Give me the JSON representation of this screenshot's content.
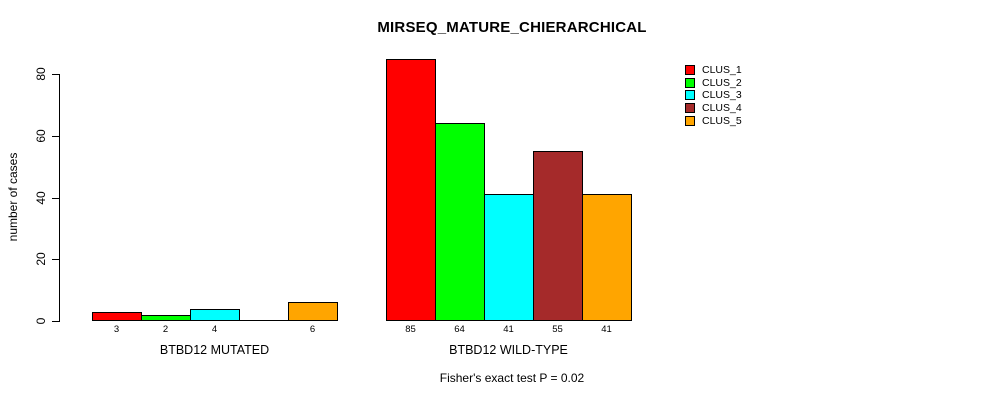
{
  "chart_data": {
    "type": "bar",
    "title": "MIRSEQ_MATURE_CHIERARCHICAL",
    "ylabel": "number of cases",
    "yticks": [
      0,
      20,
      40,
      60,
      80
    ],
    "ylim": [
      0,
      85
    ],
    "grid": false,
    "legend_position": "top-right-inside",
    "series": [
      "CLUS_1",
      "CLUS_2",
      "CLUS_3",
      "CLUS_4",
      "CLUS_5"
    ],
    "colors": [
      "#FF0000",
      "#00FF00",
      "#00FFFF",
      "#A52A2A",
      "#FFA500"
    ],
    "groups": [
      {
        "label": "BTBD12 MUTATED",
        "values": [
          3,
          2,
          4,
          0,
          6
        ],
        "bar_labels": [
          "3",
          "2",
          "4",
          "",
          "6"
        ]
      },
      {
        "label": "BTBD12 WILD-TYPE",
        "values": [
          85,
          64,
          41,
          55,
          41
        ],
        "bar_labels": [
          "85",
          "64",
          "41",
          "55",
          "41"
        ]
      }
    ],
    "annotation": "Fisher's exact test P = 0.02"
  }
}
